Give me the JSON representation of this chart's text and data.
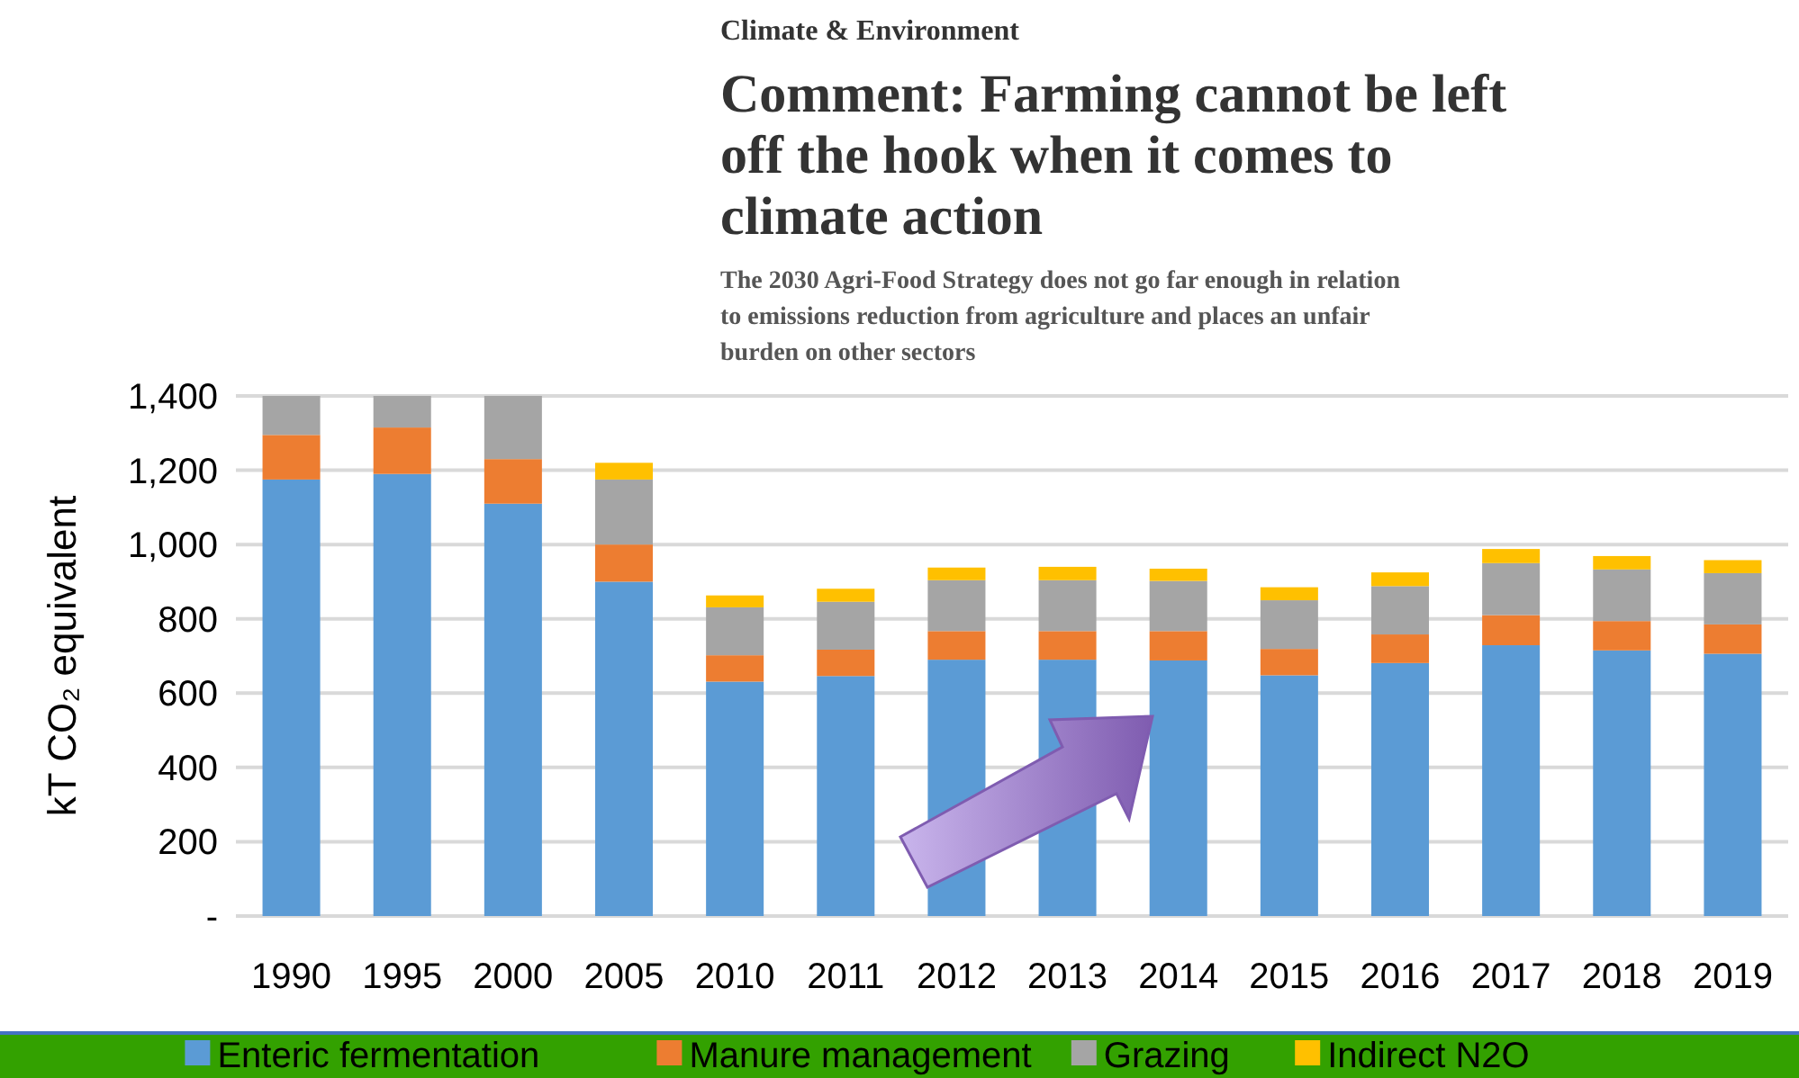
{
  "chart_data": {
    "type": "bar",
    "stacked": true,
    "title": "Comment: Farming cannot be left off the hook when it comes to climate action",
    "subtitle": "The 2030 Agri-Food Strategy does not go far enough in relation to emissions reduction from agriculture and places an unfair burden on other sectors",
    "annotations": [
      "Climate & Environment"
    ],
    "ylabel": "kT CO₂ equivalent",
    "categories": [
      "1990",
      "1995",
      "2000",
      "2005",
      "2010",
      "2011",
      "2012",
      "2013",
      "2014",
      "2015",
      "2016",
      "2017",
      "2018",
      "2019"
    ],
    "series": [
      {
        "name": "Enteric fermentation",
        "color": "#5b9bd5",
        "values": [
          1175,
          1190,
          1110,
          900,
          631,
          646,
          690,
          690,
          688,
          648,
          681,
          729,
          715,
          706
        ]
      },
      {
        "name": "Manure management",
        "color": "#ed7d31",
        "values": [
          120,
          125,
          120,
          100,
          71,
          71,
          77,
          77,
          79,
          71,
          77,
          81,
          79,
          79
        ]
      },
      {
        "name": "Grazing",
        "color": "#a5a5a5",
        "values": [
          105,
          85,
          170,
          175,
          129,
          129,
          137,
          137,
          135,
          131,
          130,
          140,
          139,
          138
        ]
      },
      {
        "name": "Indirect N2O",
        "color": "#ffc000",
        "values": [
          null,
          null,
          null,
          45,
          32,
          35,
          34,
          36,
          33,
          35,
          37,
          38,
          36,
          35
        ]
      }
    ],
    "ylim": [
      0,
      1400
    ],
    "yticks": [
      {
        "value": 0,
        "label": "-"
      },
      200,
      400,
      600,
      800,
      {
        "value": 1000,
        "label": "1,000"
      },
      {
        "value": 1200,
        "label": "1,200"
      },
      {
        "value": 1400,
        "label": "1,400"
      }
    ],
    "grid": "y",
    "legend": "bottom"
  }
}
